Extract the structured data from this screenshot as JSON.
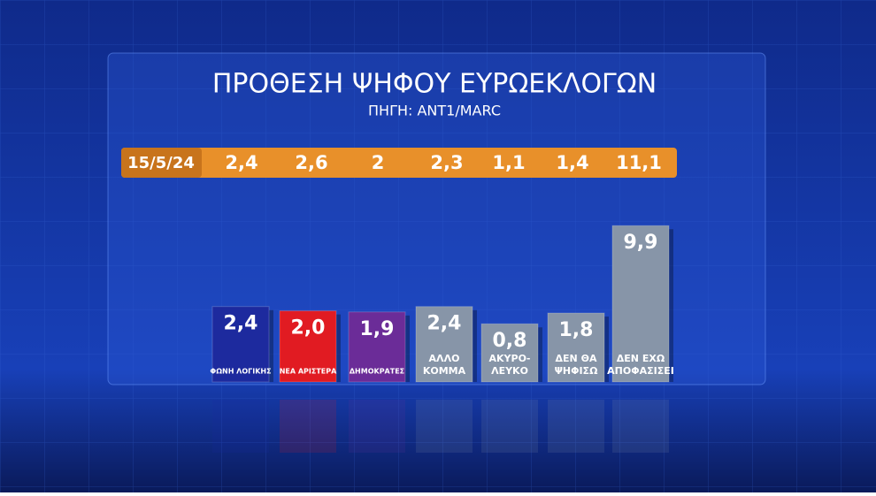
{
  "chart_data": {
    "type": "bar",
    "title": "ΠΡΟΘΕΣΗ ΨΗΦΟΥ ΕΥΡΩΕΚΛΟΓΩΝ",
    "subtitle": "ΠΗΓΗ: ANT1/MARC",
    "categories": [
      [
        "ΦΩΝΗ ΛΟΓΙΚΗΣ"
      ],
      [
        "ΝΕΑ ΑΡΙΣΤΕΡΑ"
      ],
      [
        "ΔΗΜΟΚΡΑΤΕΣ"
      ],
      [
        "ΑΛΛΟ",
        "ΚΟΜΜΑ"
      ],
      [
        "ΑΚΥΡΟ-",
        "ΛΕΥΚΟ"
      ],
      [
        "ΔΕΝ ΘΑ",
        "ΨΗΦΙΣΩ"
      ],
      [
        "ΔΕΝ ΕΧΩ",
        "ΑΠΟΦΑΣΙΣΕΙ"
      ]
    ],
    "values": [
      2.4,
      2.0,
      1.9,
      2.4,
      0.8,
      1.8,
      9.9
    ],
    "value_labels": [
      "2,4",
      "2,0",
      "1,9",
      "2,4",
      "0,8",
      "1,8",
      "9,9"
    ],
    "colors": [
      "#1d2a9e",
      "#e11b22",
      "#6b2c98",
      "#8795a8",
      "#8795a8",
      "#8795a8",
      "#8795a8"
    ],
    "previous": {
      "date": "15/5/24",
      "values": [
        2.4,
        2.6,
        2,
        2.3,
        1.1,
        1.4,
        11.1
      ],
      "value_labels": [
        "2,4",
        "2,6",
        "2",
        "2,3",
        "1,1",
        "1,4",
        "11,1"
      ],
      "color": "#e8902a"
    }
  }
}
